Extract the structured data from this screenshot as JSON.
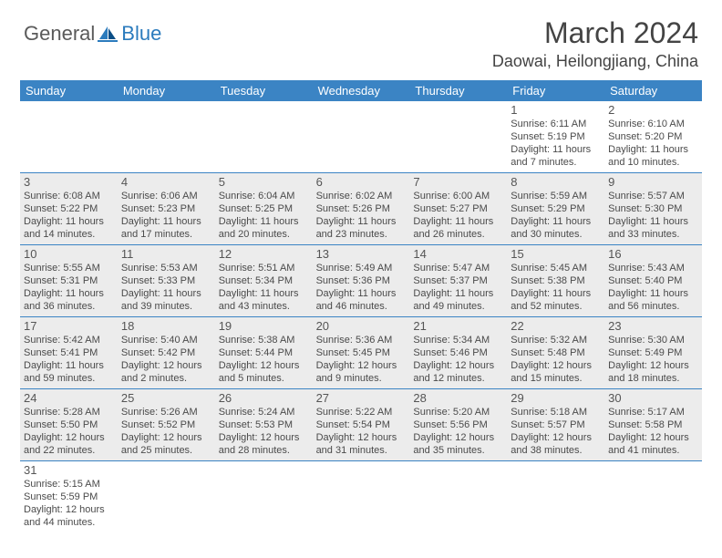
{
  "logo": {
    "text1": "General",
    "text2": "Blue"
  },
  "title": "March 2024",
  "location": "Daowai, Heilongjiang, China",
  "colors": {
    "header_bg": "#3b84c4",
    "header_text": "#ffffff",
    "shaded_bg": "#ececec",
    "border": "#3b84c4",
    "logo_gray": "#5a5a5a",
    "logo_blue": "#2b7bbd"
  },
  "weekdays": [
    "Sunday",
    "Monday",
    "Tuesday",
    "Wednesday",
    "Thursday",
    "Friday",
    "Saturday"
  ],
  "weeks": [
    [
      null,
      null,
      null,
      null,
      null,
      {
        "n": "1",
        "sunrise": "6:11 AM",
        "sunset": "5:19 PM",
        "dayl": "11 hours and 7 minutes."
      },
      {
        "n": "2",
        "sunrise": "6:10 AM",
        "sunset": "5:20 PM",
        "dayl": "11 hours and 10 minutes."
      }
    ],
    [
      {
        "n": "3",
        "sunrise": "6:08 AM",
        "sunset": "5:22 PM",
        "dayl": "11 hours and 14 minutes."
      },
      {
        "n": "4",
        "sunrise": "6:06 AM",
        "sunset": "5:23 PM",
        "dayl": "11 hours and 17 minutes."
      },
      {
        "n": "5",
        "sunrise": "6:04 AM",
        "sunset": "5:25 PM",
        "dayl": "11 hours and 20 minutes."
      },
      {
        "n": "6",
        "sunrise": "6:02 AM",
        "sunset": "5:26 PM",
        "dayl": "11 hours and 23 minutes."
      },
      {
        "n": "7",
        "sunrise": "6:00 AM",
        "sunset": "5:27 PM",
        "dayl": "11 hours and 26 minutes."
      },
      {
        "n": "8",
        "sunrise": "5:59 AM",
        "sunset": "5:29 PM",
        "dayl": "11 hours and 30 minutes."
      },
      {
        "n": "9",
        "sunrise": "5:57 AM",
        "sunset": "5:30 PM",
        "dayl": "11 hours and 33 minutes."
      }
    ],
    [
      {
        "n": "10",
        "sunrise": "5:55 AM",
        "sunset": "5:31 PM",
        "dayl": "11 hours and 36 minutes."
      },
      {
        "n": "11",
        "sunrise": "5:53 AM",
        "sunset": "5:33 PM",
        "dayl": "11 hours and 39 minutes."
      },
      {
        "n": "12",
        "sunrise": "5:51 AM",
        "sunset": "5:34 PM",
        "dayl": "11 hours and 43 minutes."
      },
      {
        "n": "13",
        "sunrise": "5:49 AM",
        "sunset": "5:36 PM",
        "dayl": "11 hours and 46 minutes."
      },
      {
        "n": "14",
        "sunrise": "5:47 AM",
        "sunset": "5:37 PM",
        "dayl": "11 hours and 49 minutes."
      },
      {
        "n": "15",
        "sunrise": "5:45 AM",
        "sunset": "5:38 PM",
        "dayl": "11 hours and 52 minutes."
      },
      {
        "n": "16",
        "sunrise": "5:43 AM",
        "sunset": "5:40 PM",
        "dayl": "11 hours and 56 minutes."
      }
    ],
    [
      {
        "n": "17",
        "sunrise": "5:42 AM",
        "sunset": "5:41 PM",
        "dayl": "11 hours and 59 minutes."
      },
      {
        "n": "18",
        "sunrise": "5:40 AM",
        "sunset": "5:42 PM",
        "dayl": "12 hours and 2 minutes."
      },
      {
        "n": "19",
        "sunrise": "5:38 AM",
        "sunset": "5:44 PM",
        "dayl": "12 hours and 5 minutes."
      },
      {
        "n": "20",
        "sunrise": "5:36 AM",
        "sunset": "5:45 PM",
        "dayl": "12 hours and 9 minutes."
      },
      {
        "n": "21",
        "sunrise": "5:34 AM",
        "sunset": "5:46 PM",
        "dayl": "12 hours and 12 minutes."
      },
      {
        "n": "22",
        "sunrise": "5:32 AM",
        "sunset": "5:48 PM",
        "dayl": "12 hours and 15 minutes."
      },
      {
        "n": "23",
        "sunrise": "5:30 AM",
        "sunset": "5:49 PM",
        "dayl": "12 hours and 18 minutes."
      }
    ],
    [
      {
        "n": "24",
        "sunrise": "5:28 AM",
        "sunset": "5:50 PM",
        "dayl": "12 hours and 22 minutes."
      },
      {
        "n": "25",
        "sunrise": "5:26 AM",
        "sunset": "5:52 PM",
        "dayl": "12 hours and 25 minutes."
      },
      {
        "n": "26",
        "sunrise": "5:24 AM",
        "sunset": "5:53 PM",
        "dayl": "12 hours and 28 minutes."
      },
      {
        "n": "27",
        "sunrise": "5:22 AM",
        "sunset": "5:54 PM",
        "dayl": "12 hours and 31 minutes."
      },
      {
        "n": "28",
        "sunrise": "5:20 AM",
        "sunset": "5:56 PM",
        "dayl": "12 hours and 35 minutes."
      },
      {
        "n": "29",
        "sunrise": "5:18 AM",
        "sunset": "5:57 PM",
        "dayl": "12 hours and 38 minutes."
      },
      {
        "n": "30",
        "sunrise": "5:17 AM",
        "sunset": "5:58 PM",
        "dayl": "12 hours and 41 minutes."
      }
    ],
    [
      {
        "n": "31",
        "sunrise": "5:15 AM",
        "sunset": "5:59 PM",
        "dayl": "12 hours and 44 minutes."
      },
      null,
      null,
      null,
      null,
      null,
      null
    ]
  ],
  "labels": {
    "sunrise": "Sunrise:",
    "sunset": "Sunset:",
    "daylight": "Daylight:"
  }
}
